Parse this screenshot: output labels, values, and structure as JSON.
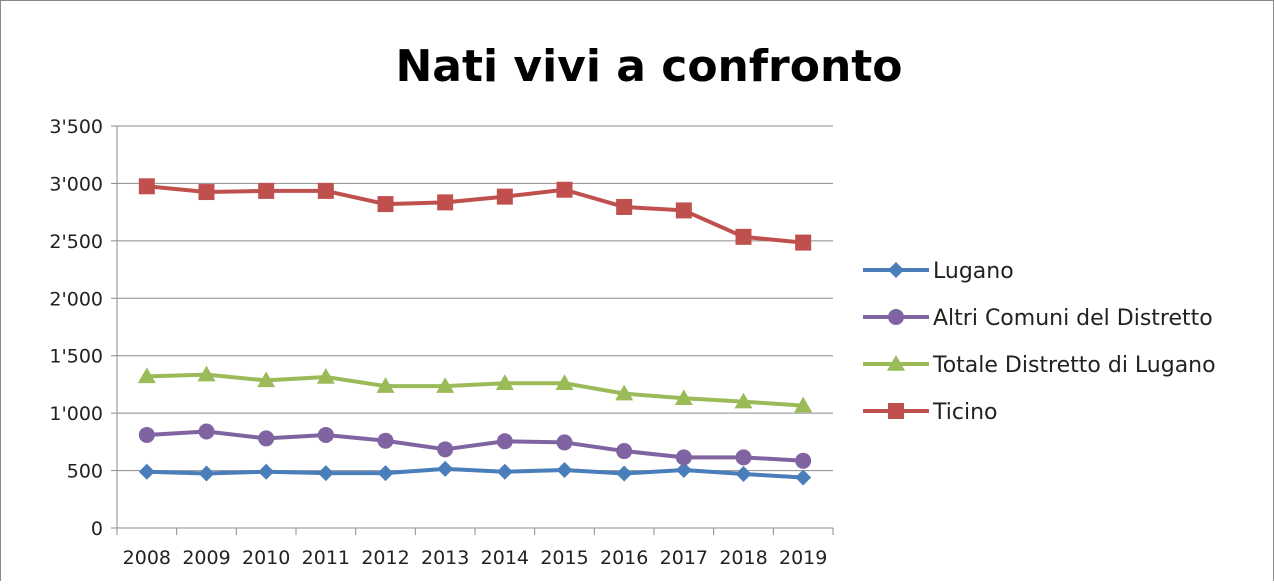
{
  "chart_data": {
    "type": "line",
    "title": "Nati vivi a confronto",
    "categories": [
      "2008",
      "2009",
      "2010",
      "2011",
      "2012",
      "2013",
      "2014",
      "2015",
      "2016",
      "2017",
      "2018",
      "2019"
    ],
    "ylim": [
      0,
      3500
    ],
    "yticks": [
      0,
      500,
      1000,
      1500,
      2000,
      2500,
      3000,
      3500
    ],
    "ytick_labels": [
      "0",
      "500",
      "1'000",
      "1'500",
      "2'000",
      "2'500",
      "3'000",
      "3'500"
    ],
    "grid": true,
    "legend_position": "right",
    "series": [
      {
        "name": "Lugano",
        "color": "#4a7ebb",
        "marker": "diamond",
        "values": [
          490,
          475,
          490,
          478,
          478,
          515,
          490,
          505,
          475,
          505,
          470,
          440
        ]
      },
      {
        "name": "Altri Comuni del Distretto",
        "color": "#8064a2",
        "marker": "circle",
        "values": [
          810,
          840,
          780,
          810,
          760,
          685,
          755,
          745,
          670,
          615,
          615,
          585
        ]
      },
      {
        "name": "Totale Distretto di Lugano",
        "color": "#9bbb59",
        "marker": "triangle",
        "values": [
          1320,
          1335,
          1285,
          1315,
          1235,
          1235,
          1260,
          1260,
          1170,
          1130,
          1100,
          1065
        ]
      },
      {
        "name": "Ticino",
        "color": "#c0504d",
        "marker": "square",
        "values": [
          2975,
          2925,
          2935,
          2935,
          2820,
          2835,
          2885,
          2945,
          2795,
          2765,
          2535,
          2485
        ]
      }
    ]
  }
}
